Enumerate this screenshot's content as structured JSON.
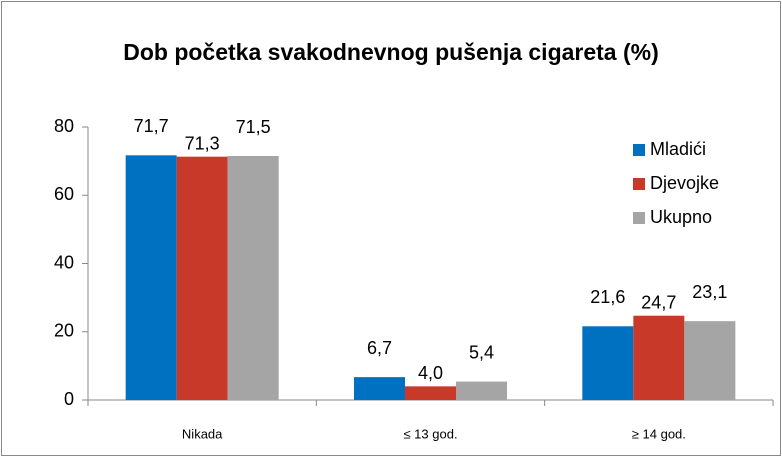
{
  "chart_data": {
    "type": "bar",
    "title": "Dob početka svakodnevnog pušenja cigareta (%)",
    "categories": [
      "Nikada",
      "≤ 13 god.",
      "≥ 14 god."
    ],
    "series": [
      {
        "name": "Mladići",
        "color": "#0070c0",
        "values": [
          71.7,
          6.7,
          21.6
        ],
        "value_labels": [
          "71,7",
          "6,7",
          "21,6"
        ]
      },
      {
        "name": "Djevojke",
        "color": "#c9392a",
        "values": [
          71.3,
          4.0,
          24.7
        ],
        "value_labels": [
          "71,3",
          "4,0",
          "24,7"
        ]
      },
      {
        "name": "Ukupno",
        "color": "#a5a5a5",
        "values": [
          71.5,
          5.4,
          23.1
        ],
        "value_labels": [
          "71,5",
          "5,4",
          "23,1"
        ]
      }
    ],
    "ylim": [
      0,
      80
    ],
    "yticks": [
      0,
      20,
      40,
      60,
      80
    ],
    "grid": false,
    "legend": "top-right"
  }
}
